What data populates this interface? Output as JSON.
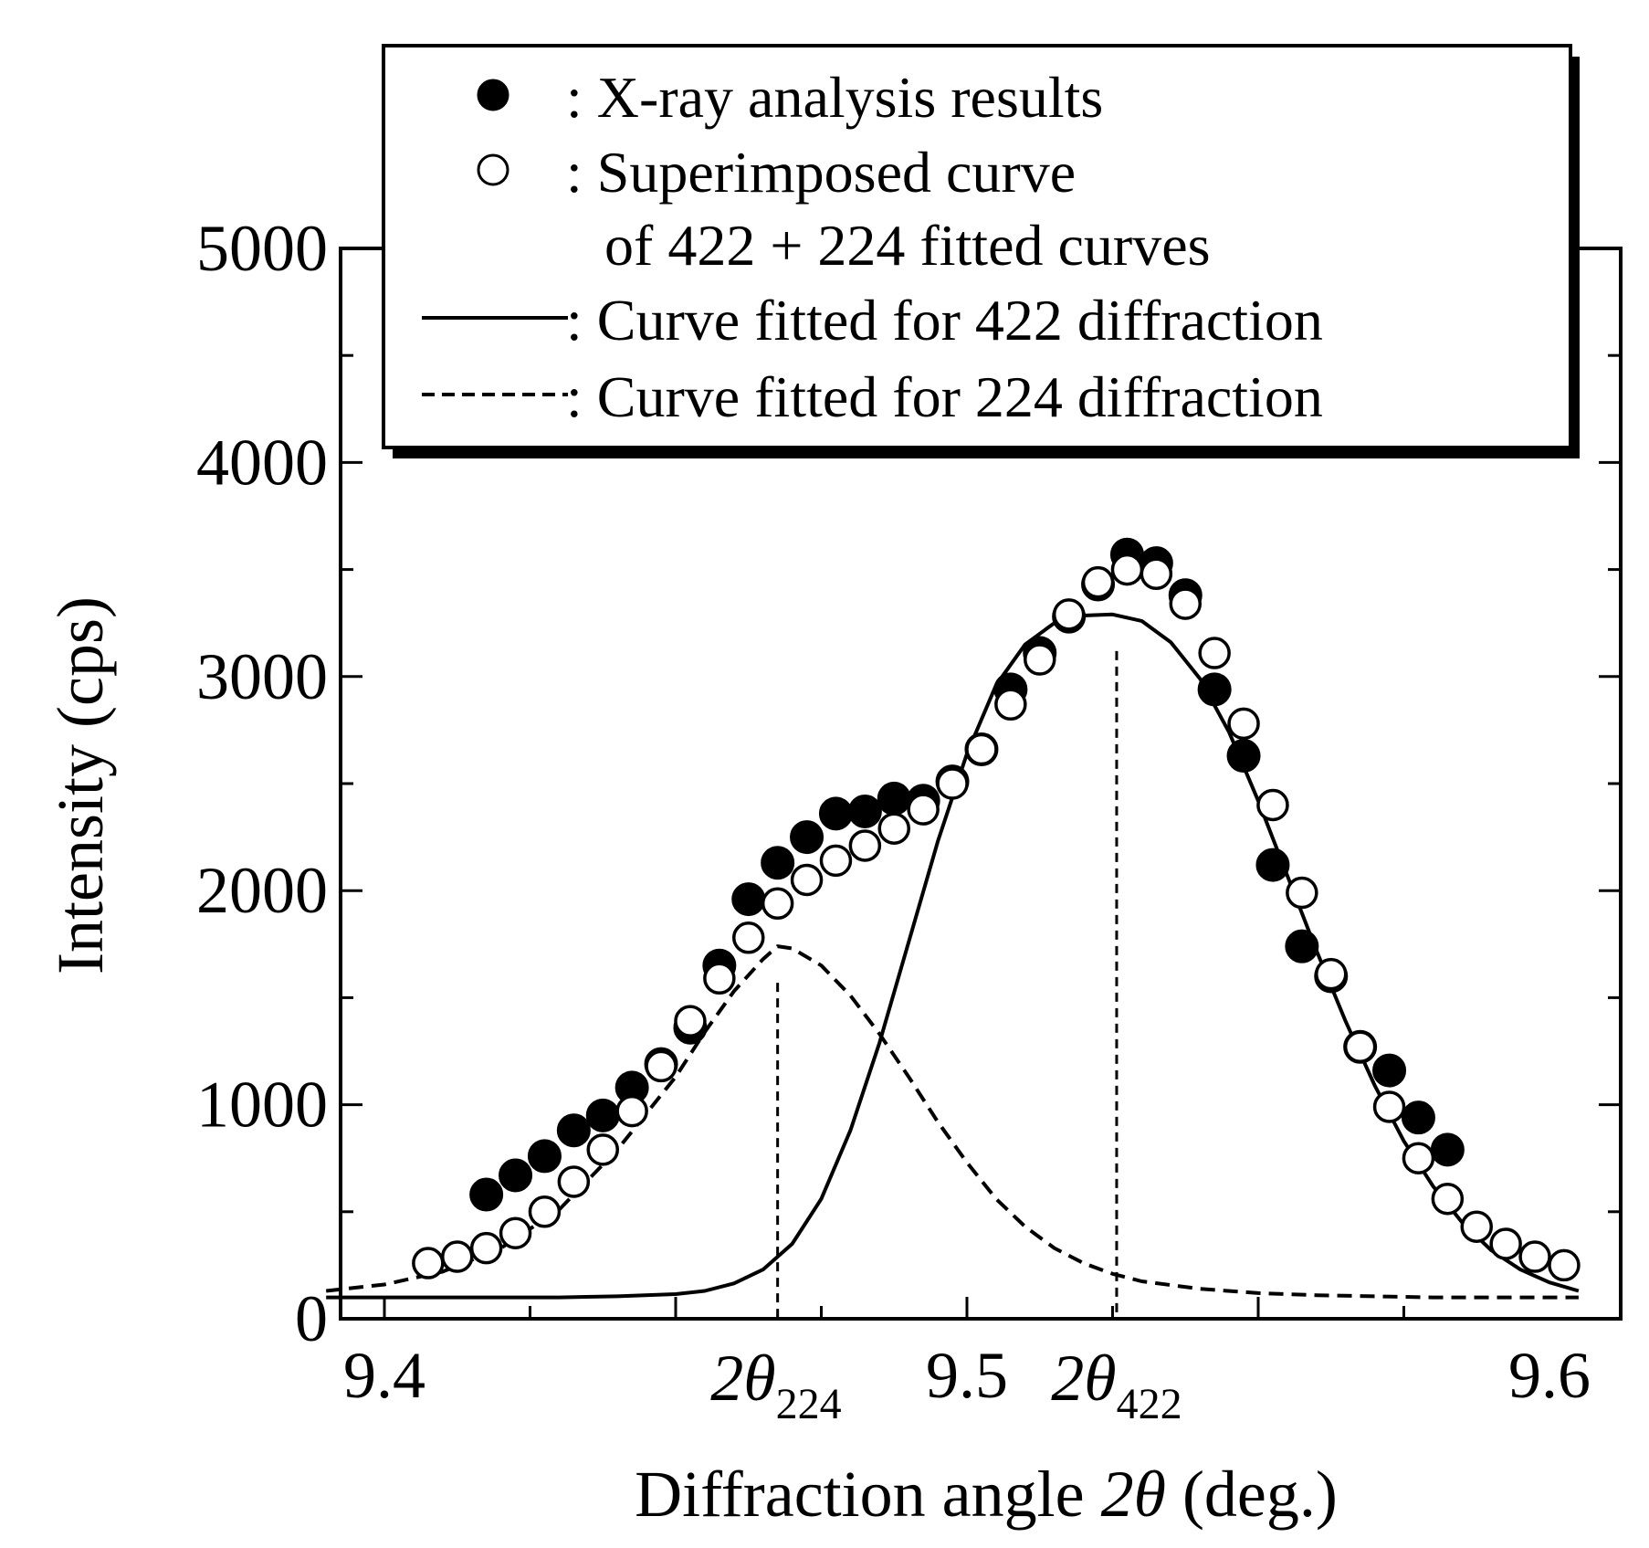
{
  "chart_data": {
    "type": "scatter",
    "title": "",
    "xlabel": "Diffraction angle 2θ (deg.)",
    "xlabel_main": "Diffraction angle",
    "xlabel_sym": "2θ",
    "xlabel_unit": "(deg.)",
    "ylabel": "Intensity (cps)",
    "xlim": [
      9.4,
      9.61
    ],
    "ylim": [
      0,
      5000
    ],
    "x_ticks": [
      9.4,
      9.5,
      9.6
    ],
    "x_tick_labels": [
      "9.4",
      "9.5",
      "9.6"
    ],
    "y_ticks": [
      0,
      1000,
      2000,
      3000,
      4000,
      5000
    ],
    "y_tick_labels": [
      "0",
      "1000",
      "2000",
      "3000",
      "4000",
      "5000"
    ],
    "grid": false,
    "legend_position": "top-right",
    "legend": {
      "xray": ": X-ray analysis results",
      "superimposed_1": ": Superimposed curve",
      "superimposed_2": "of 422 + 224 fitted curves",
      "fit422": ": Curve fitted for 422 diffraction",
      "fit224": ": Curve fitted for 224 diffraction"
    },
    "annotations": {
      "peak224_label": "2θ",
      "peak224_sub": "224",
      "peak224_x": 9.4675,
      "peak422_label": "2θ",
      "peak422_sub": "422",
      "peak422_x": 9.5257
    },
    "series": [
      {
        "name": "X-ray analysis results",
        "marker": "filled-circle",
        "points": [
          [
            9.4175,
            580
          ],
          [
            9.4225,
            670
          ],
          [
            9.4275,
            760
          ],
          [
            9.4325,
            880
          ],
          [
            9.4375,
            950
          ],
          [
            9.4425,
            1080
          ],
          [
            9.4475,
            1190
          ],
          [
            9.4525,
            1360
          ],
          [
            9.4575,
            1650
          ],
          [
            9.4625,
            1960
          ],
          [
            9.4675,
            2130
          ],
          [
            9.4725,
            2250
          ],
          [
            9.4775,
            2360
          ],
          [
            9.4825,
            2370
          ],
          [
            9.4875,
            2430
          ],
          [
            9.4925,
            2420
          ],
          [
            9.4975,
            2510
          ],
          [
            9.5025,
            2660
          ],
          [
            9.5075,
            2940
          ],
          [
            9.5125,
            3110
          ],
          [
            9.5175,
            3280
          ],
          [
            9.5225,
            3430
          ],
          [
            9.5275,
            3570
          ],
          [
            9.5325,
            3530
          ],
          [
            9.5375,
            3380
          ],
          [
            9.5425,
            2940
          ],
          [
            9.5475,
            2630
          ],
          [
            9.5525,
            2120
          ],
          [
            9.5575,
            1740
          ],
          [
            9.5625,
            1600
          ],
          [
            9.5675,
            1270
          ],
          [
            9.5725,
            1160
          ],
          [
            9.5775,
            940
          ],
          [
            9.5825,
            790
          ]
        ]
      },
      {
        "name": "Superimposed curve of 422 + 224 fitted curves",
        "marker": "open-circle",
        "points": [
          [
            9.4075,
            260
          ],
          [
            9.4125,
            290
          ],
          [
            9.4175,
            330
          ],
          [
            9.4225,
            400
          ],
          [
            9.4275,
            500
          ],
          [
            9.4325,
            640
          ],
          [
            9.4375,
            790
          ],
          [
            9.4425,
            970
          ],
          [
            9.4475,
            1180
          ],
          [
            9.4525,
            1390
          ],
          [
            9.4575,
            1590
          ],
          [
            9.4625,
            1780
          ],
          [
            9.4675,
            1940
          ],
          [
            9.4725,
            2050
          ],
          [
            9.4775,
            2140
          ],
          [
            9.4825,
            2210
          ],
          [
            9.4875,
            2290
          ],
          [
            9.4925,
            2380
          ],
          [
            9.4975,
            2500
          ],
          [
            9.5025,
            2660
          ],
          [
            9.5075,
            2870
          ],
          [
            9.5125,
            3080
          ],
          [
            9.5175,
            3290
          ],
          [
            9.5225,
            3440
          ],
          [
            9.5275,
            3500
          ],
          [
            9.5325,
            3480
          ],
          [
            9.5375,
            3340
          ],
          [
            9.5425,
            3110
          ],
          [
            9.5475,
            2780
          ],
          [
            9.5525,
            2400
          ],
          [
            9.5575,
            1990
          ],
          [
            9.5625,
            1610
          ],
          [
            9.5675,
            1270
          ],
          [
            9.5725,
            990
          ],
          [
            9.5775,
            750
          ],
          [
            9.5825,
            560
          ],
          [
            9.5875,
            430
          ],
          [
            9.5925,
            350
          ],
          [
            9.5975,
            290
          ],
          [
            9.6025,
            250
          ]
        ]
      },
      {
        "name": "Curve fitted for 422 diffraction",
        "line": "solid",
        "points": [
          [
            9.39,
            100
          ],
          [
            9.41,
            100
          ],
          [
            9.43,
            100
          ],
          [
            9.44,
            105
          ],
          [
            9.45,
            115
          ],
          [
            9.455,
            130
          ],
          [
            9.46,
            165
          ],
          [
            9.465,
            230
          ],
          [
            9.47,
            350
          ],
          [
            9.475,
            560
          ],
          [
            9.48,
            880
          ],
          [
            9.485,
            1290
          ],
          [
            9.49,
            1760
          ],
          [
            9.495,
            2230
          ],
          [
            9.5,
            2640
          ],
          [
            9.505,
            2960
          ],
          [
            9.51,
            3150
          ],
          [
            9.515,
            3250
          ],
          [
            9.52,
            3285
          ],
          [
            9.525,
            3290
          ],
          [
            9.53,
            3260
          ],
          [
            9.535,
            3160
          ],
          [
            9.54,
            2990
          ],
          [
            9.545,
            2740
          ],
          [
            9.55,
            2420
          ],
          [
            9.555,
            2070
          ],
          [
            9.56,
            1720
          ],
          [
            9.565,
            1390
          ],
          [
            9.57,
            1090
          ],
          [
            9.575,
            830
          ],
          [
            9.58,
            620
          ],
          [
            9.585,
            450
          ],
          [
            9.59,
            320
          ],
          [
            9.595,
            230
          ],
          [
            9.6,
            170
          ],
          [
            9.605,
            130
          ]
        ]
      },
      {
        "name": "Curve fitted for 224 diffraction",
        "line": "dashed",
        "points": [
          [
            9.39,
            130
          ],
          [
            9.4,
            160
          ],
          [
            9.41,
            220
          ],
          [
            9.42,
            330
          ],
          [
            9.43,
            510
          ],
          [
            9.44,
            790
          ],
          [
            9.45,
            1130
          ],
          [
            9.455,
            1340
          ],
          [
            9.46,
            1530
          ],
          [
            9.465,
            1680
          ],
          [
            9.4675,
            1740
          ],
          [
            9.47,
            1730
          ],
          [
            9.475,
            1650
          ],
          [
            9.48,
            1510
          ],
          [
            9.485,
            1330
          ],
          [
            9.49,
            1130
          ],
          [
            9.495,
            920
          ],
          [
            9.5,
            730
          ],
          [
            9.505,
            560
          ],
          [
            9.51,
            430
          ],
          [
            9.515,
            330
          ],
          [
            9.52,
            260
          ],
          [
            9.525,
            210
          ],
          [
            9.53,
            175
          ],
          [
            9.54,
            140
          ],
          [
            9.55,
            120
          ],
          [
            9.56,
            110
          ],
          [
            9.58,
            100
          ],
          [
            9.605,
            100
          ]
        ]
      }
    ]
  }
}
